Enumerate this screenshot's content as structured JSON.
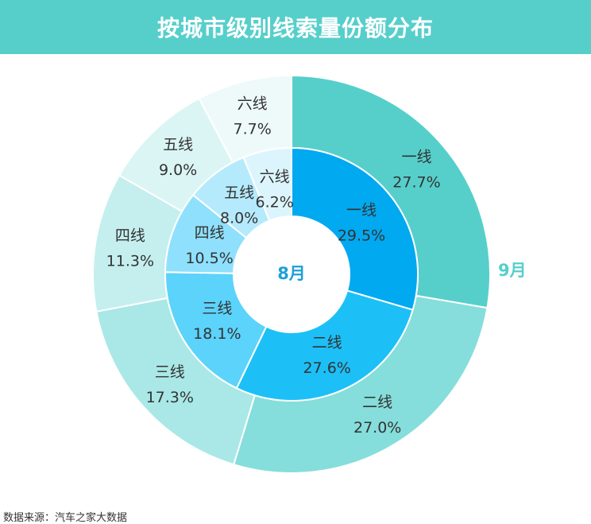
{
  "header": {
    "title": "按城市级别线索量份额分布"
  },
  "chart_data": {
    "type": "pie",
    "title": "按城市级别线索量份额分布",
    "categories": [
      "一线",
      "二线",
      "三线",
      "四线",
      "五线",
      "六线"
    ],
    "series": [
      {
        "name": "8月",
        "ring": "inner",
        "values": [
          29.5,
          27.6,
          18.1,
          10.5,
          8.0,
          6.2
        ],
        "labels": [
          "29.5%",
          "27.6%",
          "18.1%",
          "10.5%",
          "8.0%",
          "6.2%"
        ],
        "colors": [
          "#00a9f0",
          "#1cc0f7",
          "#5cd3fb",
          "#8fe0fc",
          "#b5eafc",
          "#dcf5fd"
        ]
      },
      {
        "name": "9月",
        "ring": "outer",
        "values": [
          27.7,
          27.0,
          17.3,
          11.3,
          9.0,
          7.7
        ],
        "labels": [
          "27.7%",
          "27.0%",
          "17.3%",
          "11.3%",
          "9.0%",
          "7.7%"
        ],
        "colors": [
          "#56cfcb",
          "#85dedb",
          "#a9e8e6",
          "#c4efee",
          "#daf5f4",
          "#eefafa"
        ]
      }
    ],
    "center_label": "8月",
    "outer_ring_label": "9月"
  },
  "footnote": {
    "text": "数据来源：汽车之家大数据"
  }
}
